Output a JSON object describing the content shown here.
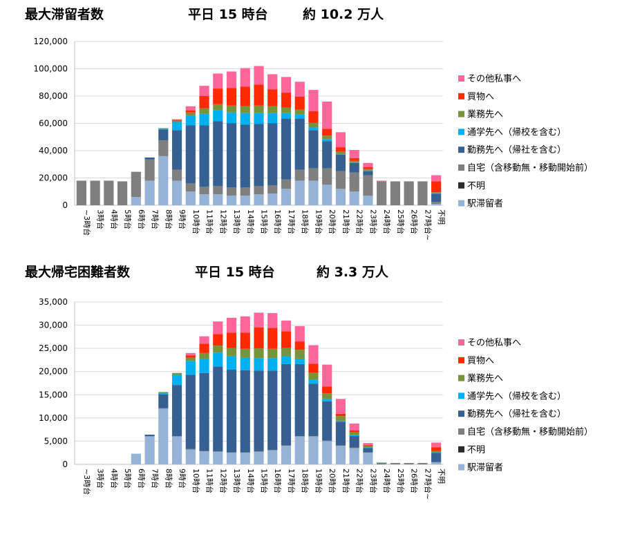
{
  "titles": {
    "t1": {
      "label": "最大滞留者数",
      "time": "平日 15 時台",
      "total": "約 10.2 万人"
    },
    "t2": {
      "label": "最大帰宅困難者数",
      "time": "平日 15 時台",
      "total": "約 3.3 万人"
    }
  },
  "chart_data": [
    {
      "type": "bar",
      "stacked": true,
      "categories": [
        "~3時台",
        "3時台",
        "4時台",
        "5時台",
        "6時台",
        "7時台",
        "8時台",
        "9時台",
        "10時台",
        "11時台",
        "12時台",
        "13時台",
        "14時台",
        "15時台",
        "16時台",
        "17時台",
        "18時台",
        "19時台",
        "20時台",
        "21時台",
        "22時台",
        "23時台",
        "24時台",
        "25時台",
        "26時台",
        "27時台~",
        "不明"
      ],
      "ylim": [
        0,
        120000
      ],
      "yticks": [
        0,
        20000,
        40000,
        60000,
        80000,
        100000,
        120000
      ],
      "ytick_labels": [
        "0",
        "20,000",
        "40,000",
        "60,000",
        "80,000",
        "100,000",
        "120,000"
      ],
      "grid": true,
      "legend_position": "right",
      "series": [
        {
          "name": "駅滞留者",
          "color": "#95b3d7",
          "values": [
            0,
            0,
            0,
            0,
            6000,
            18000,
            36000,
            18000,
            10000,
            8000,
            8000,
            7000,
            7000,
            8000,
            8500,
            12000,
            18000,
            18000,
            15000,
            12000,
            10000,
            7000,
            0,
            0,
            0,
            0,
            1000
          ]
        },
        {
          "name": "不明",
          "color": "#2b2b2b",
          "values": [
            0,
            0,
            0,
            0,
            0,
            0,
            0,
            0,
            0,
            0,
            0,
            0,
            0,
            0,
            0,
            0,
            0,
            0,
            0,
            0,
            0,
            0,
            0,
            0,
            0,
            0,
            0
          ]
        },
        {
          "name": "自宅（含移動無・移動開始前）",
          "color": "#7f7f7f",
          "values": [
            18000,
            18000,
            18000,
            17500,
            18500,
            15500,
            11500,
            8000,
            6000,
            5500,
            6000,
            6000,
            6000,
            6000,
            6000,
            7000,
            8000,
            9000,
            12000,
            13000,
            14000,
            15000,
            17500,
            17500,
            17500,
            17500,
            1500
          ]
        },
        {
          "name": "勤務先へ（帰社を含む）",
          "color": "#366092",
          "values": [
            0,
            0,
            0,
            0,
            0,
            1500,
            8000,
            29000,
            42500,
            45000,
            47500,
            47000,
            46000,
            45500,
            45500,
            44500,
            37500,
            28000,
            20000,
            12000,
            7000,
            3000,
            0,
            0,
            0,
            0,
            6000
          ]
        },
        {
          "name": "通学先へ（帰校を含む）",
          "color": "#00b0f0",
          "values": [
            0,
            0,
            0,
            0,
            0,
            0,
            500,
            6000,
            7000,
            8500,
            8000,
            8000,
            8500,
            8000,
            7500,
            4000,
            3000,
            2000,
            1500,
            500,
            500,
            500,
            0,
            0,
            0,
            0,
            500
          ]
        },
        {
          "name": "業務先へ",
          "color": "#77933c",
          "values": [
            0,
            0,
            0,
            0,
            0,
            0,
            500,
            1000,
            2500,
            4000,
            4500,
            5000,
            5000,
            5500,
            5000,
            4000,
            3500,
            3500,
            2500,
            2000,
            1000,
            1000,
            0,
            0,
            0,
            0,
            500
          ]
        },
        {
          "name": "買物へ",
          "color": "#ff2a00",
          "values": [
            0,
            0,
            0,
            0,
            0,
            0,
            0,
            500,
            1500,
            9000,
            11500,
            13000,
            14500,
            15500,
            12500,
            11000,
            9500,
            8500,
            5000,
            3000,
            2000,
            1500,
            0,
            0,
            0,
            0,
            8000
          ]
        },
        {
          "name": "その他私事へ",
          "color": "#ff6699",
          "values": [
            0,
            0,
            0,
            0,
            0,
            0,
            0,
            500,
            3000,
            7500,
            11000,
            12000,
            13500,
            13500,
            11000,
            11500,
            11000,
            15500,
            20000,
            11000,
            6000,
            3000,
            500,
            0,
            0,
            0,
            4500
          ]
        }
      ]
    },
    {
      "type": "bar",
      "stacked": true,
      "categories": [
        "~3時台",
        "3時台",
        "4時台",
        "5時台",
        "6時台",
        "7時台",
        "8時台",
        "9時台",
        "10時台",
        "11時台",
        "12時台",
        "13時台",
        "14時台",
        "15時台",
        "16時台",
        "17時台",
        "18時台",
        "19時台",
        "20時台",
        "21時台",
        "22時台",
        "23時台",
        "24時台",
        "25時台",
        "26時台",
        "27時台~",
        "不明"
      ],
      "ylim": [
        0,
        35000
      ],
      "yticks": [
        0,
        5000,
        10000,
        15000,
        20000,
        25000,
        30000,
        35000
      ],
      "ytick_labels": [
        "0",
        "5,000",
        "10,000",
        "15,000",
        "20,000",
        "25,000",
        "30,000",
        "35,000"
      ],
      "grid": true,
      "legend_position": "right",
      "series": [
        {
          "name": "駅滞留者",
          "color": "#95b3d7",
          "values": [
            0,
            0,
            0,
            0,
            2300,
            6000,
            12000,
            6000,
            3200,
            2800,
            2700,
            2500,
            2500,
            2700,
            3000,
            4000,
            6000,
            6000,
            5000,
            4000,
            3500,
            2500,
            0,
            0,
            0,
            0,
            400
          ]
        },
        {
          "name": "不明",
          "color": "#2b2b2b",
          "values": [
            0,
            0,
            0,
            0,
            0,
            0,
            0,
            0,
            0,
            0,
            0,
            0,
            0,
            0,
            0,
            0,
            0,
            0,
            0,
            0,
            0,
            0,
            0,
            0,
            0,
            0,
            0
          ]
        },
        {
          "name": "自宅（含移動無・移動開始前）",
          "color": "#7f7f7f",
          "values": [
            0,
            0,
            0,
            0,
            0,
            100,
            100,
            100,
            100,
            100,
            100,
            100,
            100,
            100,
            100,
            100,
            100,
            100,
            100,
            100,
            100,
            100,
            300,
            300,
            300,
            300,
            100
          ]
        },
        {
          "name": "勤務先へ（帰社を含む）",
          "color": "#366092",
          "values": [
            0,
            0,
            0,
            0,
            0,
            300,
            3000,
            11000,
            16000,
            16800,
            18300,
            17800,
            17700,
            17400,
            17100,
            17500,
            15500,
            11300,
            8500,
            5100,
            2500,
            900,
            0,
            0,
            0,
            0,
            2000
          ]
        },
        {
          "name": "通学先へ（帰校を含む）",
          "color": "#00b0f0",
          "values": [
            0,
            0,
            0,
            0,
            0,
            0,
            300,
            2200,
            3000,
            3000,
            3000,
            3000,
            2700,
            2700,
            2700,
            1700,
            1200,
            900,
            500,
            200,
            200,
            100,
            0,
            0,
            0,
            0,
            100
          ]
        },
        {
          "name": "業務先へ",
          "color": "#77933c",
          "values": [
            0,
            0,
            0,
            0,
            0,
            0,
            200,
            400,
            700,
            1300,
            1500,
            1700,
            1900,
            2100,
            2000,
            1800,
            1900,
            1400,
            1200,
            1000,
            600,
            300,
            0,
            0,
            0,
            0,
            300
          ]
        },
        {
          "name": "買物へ",
          "color": "#ff2a00",
          "values": [
            0,
            0,
            0,
            0,
            0,
            0,
            0,
            0,
            500,
            2000,
            2500,
            3300,
            3500,
            4500,
            4500,
            3600,
            1800,
            2000,
            1500,
            500,
            400,
            200,
            0,
            0,
            0,
            0,
            800
          ]
        },
        {
          "name": "その他私事へ",
          "color": "#ff6699",
          "values": [
            0,
            0,
            0,
            0,
            0,
            0,
            0,
            0,
            500,
            1600,
            2700,
            3200,
            3500,
            3200,
            3200,
            2300,
            3300,
            4000,
            4700,
            3200,
            1500,
            500,
            100,
            0,
            0,
            0,
            1000
          ]
        }
      ]
    }
  ]
}
